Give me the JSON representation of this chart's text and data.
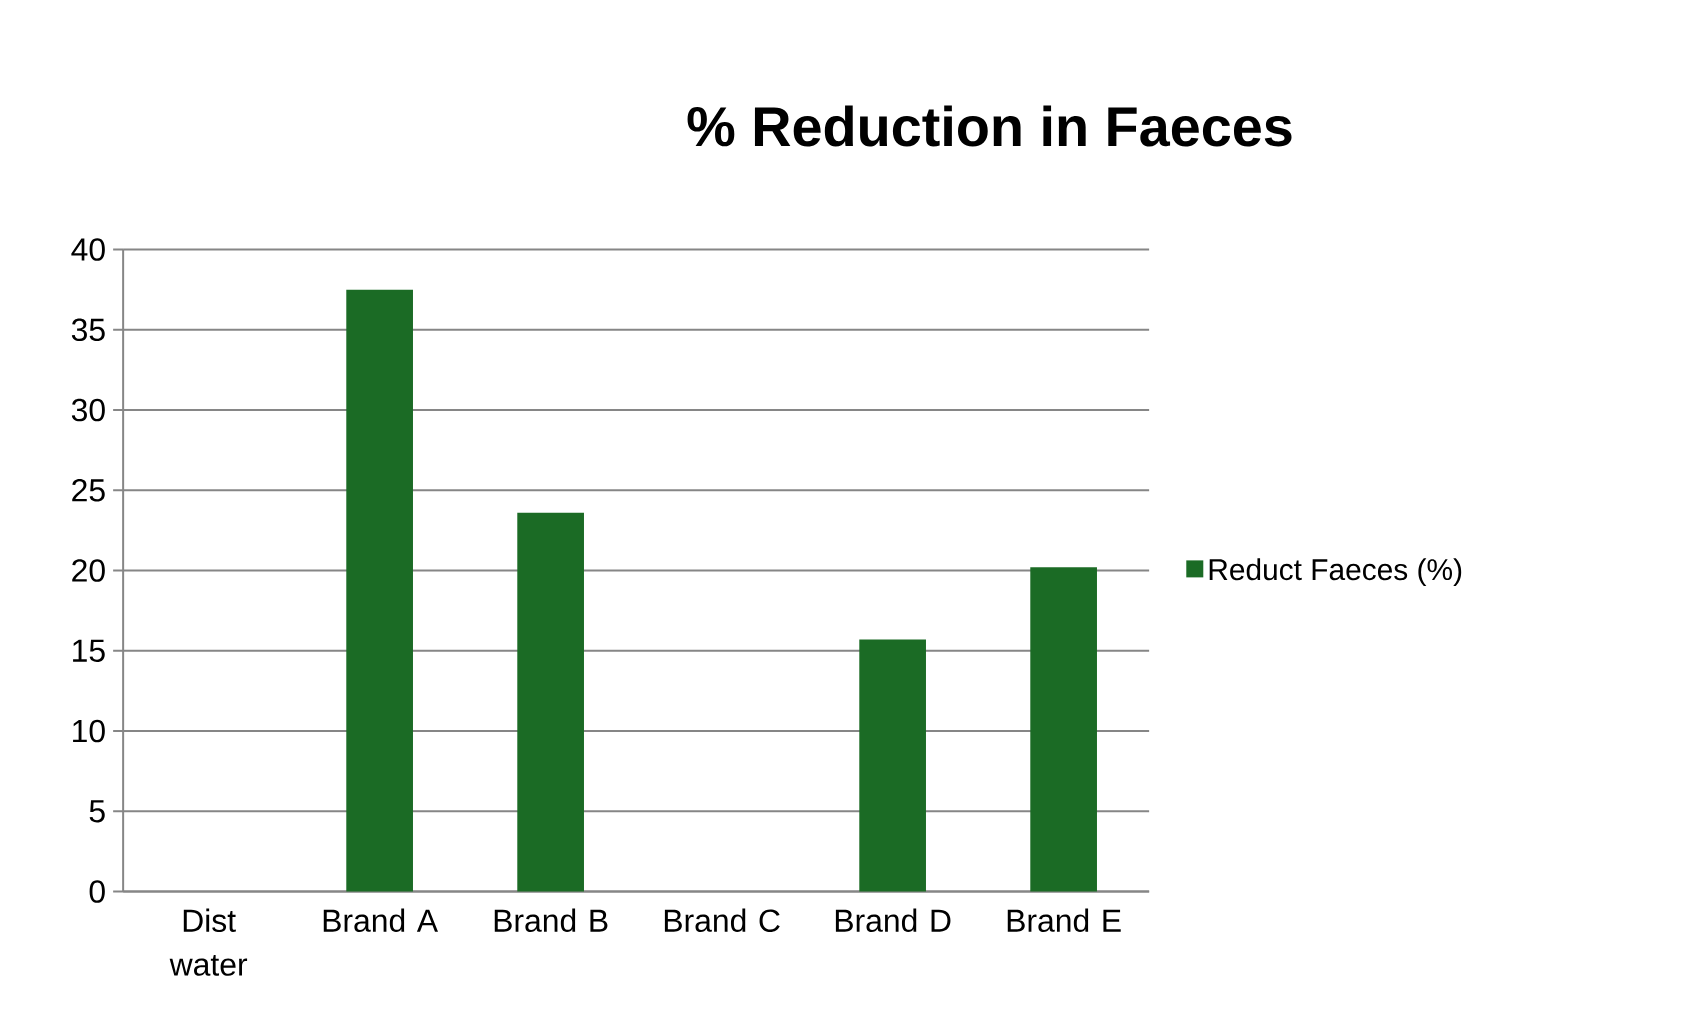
{
  "chart_data": {
    "type": "bar",
    "title": "% Reduction in Faeces",
    "categories": [
      "Dist water",
      "Brand A",
      "Brand B",
      "Brand C",
      "Brand D",
      "Brand E"
    ],
    "series": [
      {
        "name": "Reduct Faeces (%)",
        "color": "#1b6b25",
        "values": [
          0,
          37.5,
          23.6,
          0,
          15.7,
          20.2
        ]
      }
    ],
    "ylim": [
      0,
      40
    ],
    "yticks": [
      0,
      5,
      10,
      15,
      20,
      25,
      30,
      35,
      40
    ],
    "grid": "y",
    "legend": "right"
  }
}
